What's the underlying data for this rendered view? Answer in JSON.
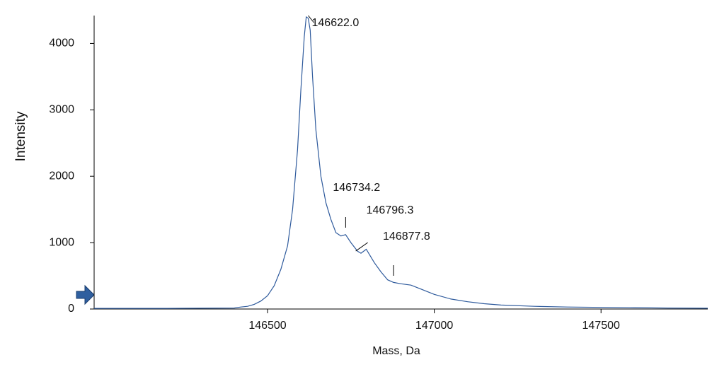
{
  "chart_data": {
    "type": "line",
    "x_label": "Mass, Da",
    "y_label": "Intensity",
    "series": [
      {
        "color": "#2e5a9c",
        "x": [
          145980,
          146200,
          146400,
          146420,
          146440,
          146460,
          146480,
          146500,
          146520,
          146540,
          146560,
          146575,
          146590,
          146600,
          146610,
          146616,
          146622,
          146628,
          146635,
          146645,
          146660,
          146675,
          146690,
          146705,
          146720,
          146734,
          146750,
          146770,
          146780,
          146796,
          146820,
          146840,
          146860,
          146878,
          146900,
          146930,
          146960,
          147000,
          147050,
          147100,
          147150,
          147200,
          147300,
          147400,
          147500,
          147600,
          147700,
          147820
        ],
        "values": [
          10,
          10,
          15,
          30,
          40,
          70,
          120,
          200,
          350,
          600,
          950,
          1500,
          2400,
          3300,
          4100,
          4400,
          4380,
          4200,
          3500,
          2700,
          2000,
          1600,
          1350,
          1150,
          1100,
          1120,
          1000,
          870,
          840,
          900,
          700,
          560,
          440,
          400,
          380,
          360,
          300,
          220,
          150,
          110,
          80,
          60,
          40,
          30,
          25,
          20,
          15,
          12
        ]
      }
    ],
    "annotations": [
      {
        "value": 146622.0,
        "label": "146622.0"
      },
      {
        "value": 146734.2,
        "label": "146734.2"
      },
      {
        "value": 146796.3,
        "label": "146796.3"
      },
      {
        "value": 146877.8,
        "label": "146877.8"
      }
    ],
    "xlim": [
      145980,
      147820
    ],
    "xticks": [
      146500,
      147000,
      147500
    ],
    "ylim": [
      0,
      4420
    ],
    "yticks": [
      0,
      1000,
      2000,
      3000,
      4000
    ]
  }
}
